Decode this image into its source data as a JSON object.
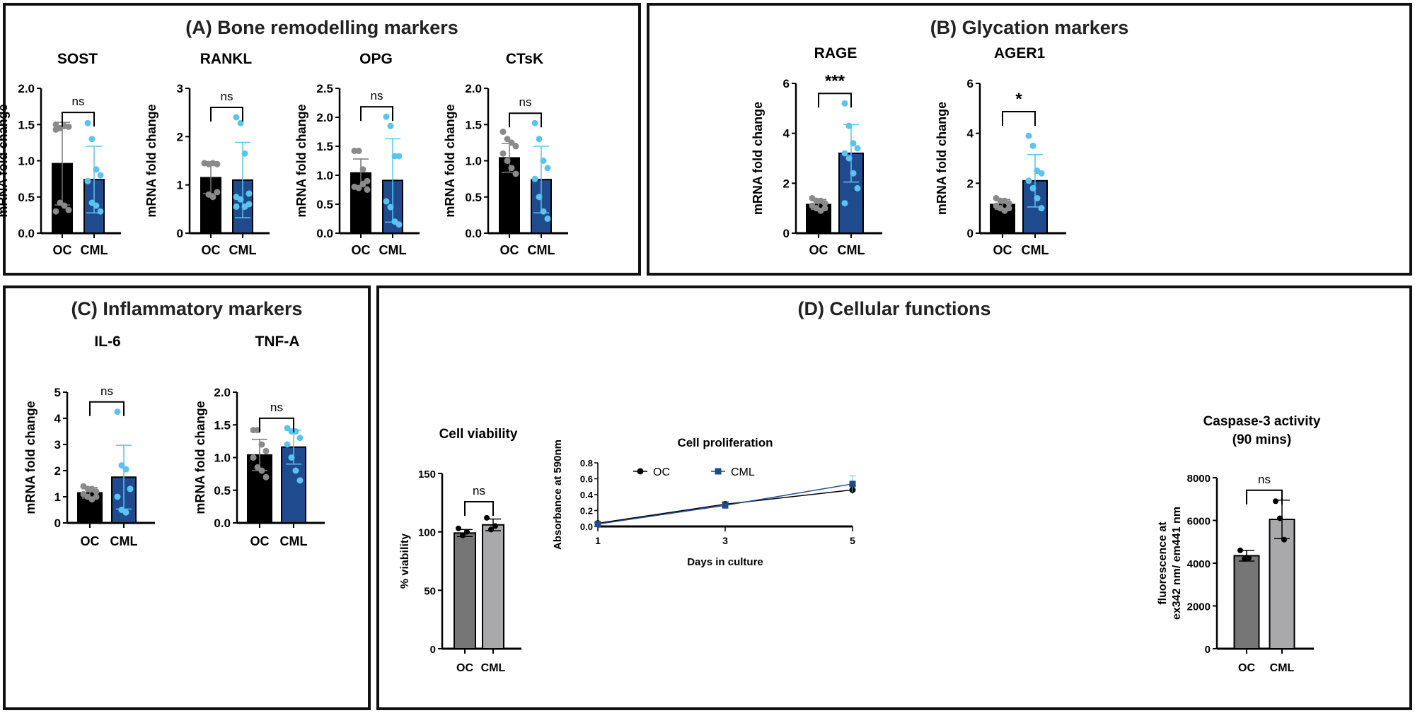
{
  "panels": {
    "a": "(A) Bone remodelling markers",
    "b": "(B) Glycation markers",
    "c": "(C) Inflammatory  markers",
    "d": "(D) Cellular functions"
  },
  "colors": {
    "oc_bar": "#000000",
    "oc_point": "#8a8a8a",
    "cml_bar": "#1f4b8e",
    "cml_point": "#5bc3ee",
    "d_oc_bar": "#767676",
    "d_cml_bar": "#a9a9ab",
    "d_point": "#000000",
    "prolif_oc": "#000000",
    "prolif_cml": "#1f4b8e",
    "prolif_cml_err": "#5bc3ee"
  },
  "chart_data": [
    {
      "type": "bar",
      "title": "SOST",
      "ylabel": "mRNA fold change",
      "ylim": [
        0,
        2.0
      ],
      "yticks": [
        "0.0",
        "0.5",
        "1.0",
        "1.5",
        "2.0"
      ],
      "categories": [
        "OC",
        "CML"
      ],
      "significance": "ns",
      "series": [
        {
          "mean": 0.96,
          "sd": 0.57,
          "points": [
            1.43,
            1.45,
            1.48,
            1.47,
            1.5,
            0.42,
            0.38,
            0.32,
            0.3
          ]
        },
        {
          "mean": 0.74,
          "sd": 0.46,
          "points": [
            1.52,
            1.3,
            0.88,
            0.8,
            0.72,
            0.42,
            0.38,
            0.3
          ]
        }
      ]
    },
    {
      "type": "bar",
      "title": "RANKL",
      "ylabel": "mRNA fold change",
      "ylim": [
        0,
        3
      ],
      "yticks": [
        "0",
        "1",
        "2",
        "3"
      ],
      "categories": [
        "OC",
        "CML"
      ],
      "significance": "ns",
      "series": [
        {
          "mean": 1.15,
          "sd": 0.33,
          "points": [
            1.45,
            1.43,
            1.45,
            1.43,
            1.45,
            0.8,
            0.75,
            0.85
          ]
        },
        {
          "mean": 1.1,
          "sd": 0.78,
          "points": [
            2.4,
            2.28,
            1.65,
            0.82,
            0.75,
            0.7,
            0.55,
            0.6,
            0.55
          ]
        }
      ]
    },
    {
      "type": "bar",
      "title": "OPG",
      "ylabel": "mRNA fold change",
      "ylim": [
        0,
        2.5
      ],
      "yticks": [
        "0.0",
        "0.5",
        "1.0",
        "1.5",
        "2.0",
        "2.5"
      ],
      "categories": [
        "OC",
        "CML"
      ],
      "significance": "ns",
      "series": [
        {
          "mean": 1.04,
          "sd": 0.24,
          "points": [
            1.42,
            1.42,
            1.1,
            0.9,
            0.8,
            0.78,
            0.85,
            0.75
          ]
        },
        {
          "mean": 0.91,
          "sd": 0.72,
          "points": [
            2.01,
            1.85,
            1.33,
            1.33,
            0.55,
            0.45,
            0.2,
            0.15
          ]
        }
      ]
    },
    {
      "type": "bar",
      "title": "CTsK",
      "ylabel": "mRNA fold change",
      "ylim": [
        0,
        2.0
      ],
      "yticks": [
        "0.0",
        "0.5",
        "1.0",
        "1.5",
        "2.0"
      ],
      "categories": [
        "OC",
        "CML"
      ],
      "significance": "ns",
      "series": [
        {
          "mean": 1.04,
          "sd": 0.2,
          "points": [
            1.4,
            1.3,
            1.25,
            1.2,
            1.1,
            1.0,
            0.9,
            0.82
          ]
        },
        {
          "mean": 0.74,
          "sd": 0.46,
          "points": [
            1.52,
            1.3,
            1.0,
            0.9,
            0.75,
            0.5,
            0.3,
            0.2
          ]
        }
      ]
    },
    {
      "type": "bar",
      "title": "RAGE",
      "ylabel": "mRNA fold change",
      "ylim": [
        0,
        6
      ],
      "yticks": [
        "0",
        "2",
        "4",
        "6"
      ],
      "categories": [
        "OC",
        "CML"
      ],
      "significance": "***",
      "series": [
        {
          "mean": 1.15,
          "sd": 0.2,
          "points": [
            1.4,
            1.3,
            1.3,
            1.2,
            1.1,
            1.0,
            0.9,
            1.0
          ]
        },
        {
          "mean": 3.2,
          "sd": 1.15,
          "points": [
            5.2,
            4.3,
            3.6,
            3.4,
            3.2,
            3.0,
            2.4,
            1.8,
            1.2
          ]
        }
      ]
    },
    {
      "type": "bar",
      "title": "AGER1",
      "ylabel": "mRNA fold change",
      "ylim": [
        0,
        6
      ],
      "yticks": [
        "0",
        "2",
        "4",
        "6"
      ],
      "categories": [
        "OC",
        "CML"
      ],
      "significance": "*",
      "series": [
        {
          "mean": 1.15,
          "sd": 0.2,
          "points": [
            1.4,
            1.3,
            1.3,
            1.2,
            1.1,
            1.0,
            0.9,
            1.0
          ]
        },
        {
          "mean": 2.1,
          "sd": 1.05,
          "points": [
            3.9,
            3.5,
            2.5,
            2.4,
            2.1,
            1.8,
            1.4,
            1.0
          ]
        }
      ]
    },
    {
      "type": "bar",
      "title": "IL-6",
      "ylabel": "mRNA fold change",
      "ylim": [
        0,
        5
      ],
      "yticks": [
        "0",
        "1",
        "2",
        "3",
        "4",
        "5"
      ],
      "categories": [
        "OC",
        "CML"
      ],
      "significance": "ns",
      "series": [
        {
          "mean": 1.15,
          "sd": 0.2,
          "points": [
            1.4,
            1.3,
            1.3,
            1.2,
            1.1,
            1.0,
            0.9,
            1.0
          ]
        },
        {
          "mean": 1.75,
          "sd": 1.22,
          "points": [
            4.25,
            2.2,
            2.05,
            1.3,
            1.0,
            0.5,
            0.4
          ]
        }
      ]
    },
    {
      "type": "bar",
      "title": "TNF-A",
      "ylabel": "mRNA fold change",
      "ylim": [
        0,
        2.0
      ],
      "yticks": [
        "0.0",
        "0.5",
        "1.0",
        "1.5",
        "2.0"
      ],
      "categories": [
        "OC",
        "CML"
      ],
      "significance": "ns",
      "series": [
        {
          "mean": 1.04,
          "sd": 0.24,
          "points": [
            1.42,
            1.42,
            1.2,
            1.1,
            1.0,
            0.85,
            0.8,
            0.7
          ]
        },
        {
          "mean": 1.16,
          "sd": 0.26,
          "points": [
            1.45,
            1.4,
            1.4,
            1.3,
            1.2,
            1.0,
            0.8,
            0.65
          ]
        }
      ]
    },
    {
      "type": "bar",
      "title": "Cell viability",
      "ylabel": "% viability",
      "ylim": [
        0,
        150
      ],
      "yticks": [
        "0",
        "50",
        "100",
        "150"
      ],
      "categories": [
        "OC",
        "CML"
      ],
      "significance": "ns",
      "series": [
        {
          "mean": 99,
          "sd": 3,
          "points": [
            103,
            97,
            100
          ]
        },
        {
          "mean": 106,
          "sd": 5,
          "points": [
            112,
            102,
            105
          ]
        }
      ]
    },
    {
      "type": "bar",
      "title": "Caspase-3 activity",
      "title2": "(90 mins)",
      "ylabel": "fluorescence at",
      "ylabel2": "ex342 nm/ em441 nm",
      "ylim": [
        0,
        8000
      ],
      "yticks": [
        "0",
        "2000",
        "4000",
        "6000",
        "8000"
      ],
      "categories": [
        "OC",
        "CML"
      ],
      "significance": "ns",
      "series": [
        {
          "mean": 4350,
          "sd": 250,
          "points": [
            4600,
            4200,
            4250
          ]
        },
        {
          "mean": 6050,
          "sd": 900,
          "points": [
            6900,
            6100,
            5100
          ]
        }
      ]
    },
    {
      "type": "line",
      "title": "Cell proliferation",
      "xlabel": "Days in culture",
      "ylabel": "Absorbance at 590nm",
      "x": [
        1,
        3,
        5
      ],
      "xticks": [
        "1",
        "3",
        "5"
      ],
      "ylim": [
        0,
        0.8
      ],
      "yticks": [
        "0.0",
        "0.2",
        "0.4",
        "0.6",
        "0.8"
      ],
      "legend": "top-left",
      "series": [
        {
          "name": "OC",
          "values": [
            0.04,
            0.28,
            0.46
          ],
          "err": [
            0.01,
            0.03,
            0.05
          ],
          "marker": "circle"
        },
        {
          "name": "CML",
          "values": [
            0.03,
            0.265,
            0.535
          ],
          "err": [
            0.01,
            0.01,
            0.1
          ],
          "marker": "square"
        }
      ]
    }
  ]
}
